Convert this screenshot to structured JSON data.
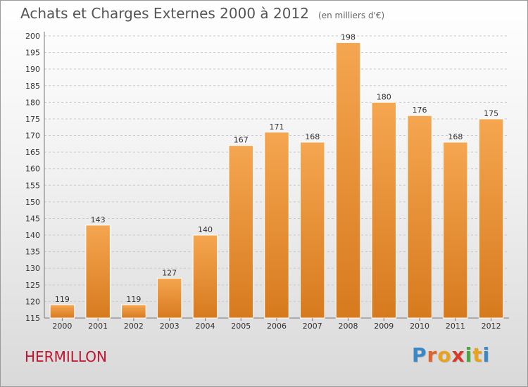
{
  "title": "Achats et Charges Externes 2000 à 2012",
  "subtitle": "(en milliers d'€)",
  "place": "HERMILLON",
  "logo": {
    "letters": [
      "P",
      "r",
      "o",
      "x",
      "i",
      "t",
      "i"
    ],
    "colors": [
      "#3a87c8",
      "#e0632a",
      "#e8a21c",
      "#d8372a",
      "#4aa63c",
      "#e8a21c",
      "#3a87c8"
    ]
  },
  "colors": {
    "bar_top": "#f5a650",
    "bar_bottom": "#d77a1e",
    "grid": "#c9c9c9"
  },
  "chart_data": {
    "type": "bar",
    "title": "Achats et Charges Externes 2000 à 2012",
    "subtitle": "(en milliers d'€)",
    "categories": [
      "2000",
      "2001",
      "2002",
      "2003",
      "2004",
      "2005",
      "2006",
      "2007",
      "2008",
      "2009",
      "2010",
      "2011",
      "2012"
    ],
    "values": [
      119,
      143,
      119,
      127,
      140,
      167,
      171,
      168,
      198,
      180,
      176,
      168,
      175
    ],
    "ylim": [
      115,
      200
    ],
    "yticks": [
      115,
      120,
      125,
      130,
      135,
      140,
      145,
      150,
      155,
      160,
      165,
      170,
      175,
      180,
      185,
      190,
      195,
      200
    ],
    "grid": true,
    "xlabel": "",
    "ylabel": ""
  }
}
